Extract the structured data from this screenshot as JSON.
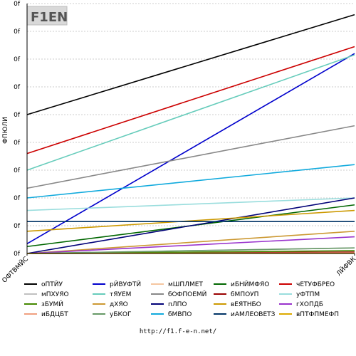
{
  "logo": {
    "text": "F1EN"
  },
  "footer": {
    "url": "http://f1.f-e-n.net/"
  },
  "chart_data": {
    "type": "line",
    "ylabel": "ФПЮЛИ",
    "xlabel": "",
    "categories": [
      "ОФТВМЙС",
      "ЛЙФВК"
    ],
    "y_tick_labels": [
      "0f",
      "0f",
      "0f",
      "0f",
      "0f",
      "0f",
      "0f",
      "0f",
      "0f",
      "0f"
    ],
    "ylim": [
      0,
      9
    ],
    "grid": true,
    "legend_position": "bottom",
    "series": [
      {
        "name": "оПТЙУ",
        "color": "#000000",
        "values": [
          5.0,
          8.6
        ]
      },
      {
        "name": "рЙВУФТЙ",
        "color": "#0000cc",
        "values": [
          0.35,
          7.2
        ]
      },
      {
        "name": "мШПЛМЕТ",
        "color": "#f5c6a0",
        "values": [
          0.0,
          0.03
        ]
      },
      {
        "name": "иБНЙМФЯО",
        "color": "#006600",
        "values": [
          0.25,
          1.75
        ]
      },
      {
        "name": "чЕТУФБРЕО",
        "color": "#cc0000",
        "values": [
          3.6,
          7.45
        ]
      },
      {
        "name": "мПХУЯО",
        "color": "#c0c0c0",
        "values": [
          0.0,
          0.2
        ]
      },
      {
        "name": "тЯУЕМ",
        "color": "#66ccbb",
        "values": [
          3.0,
          7.15
        ]
      },
      {
        "name": "бОФПОЕМЙ",
        "color": "#888888",
        "values": [
          2.35,
          4.6
        ]
      },
      {
        "name": "бМПОУП",
        "color": "#990000",
        "values": [
          0.0,
          0.05
        ]
      },
      {
        "name": "уФТПМ",
        "color": "#99dddd",
        "values": [
          1.55,
          2.0
        ]
      },
      {
        "name": "зБУМЙ",
        "color": "#448800",
        "values": [
          0.0,
          0.1
        ]
      },
      {
        "name": "дХЯО",
        "color": "#cc9933",
        "values": [
          0.0,
          0.8
        ]
      },
      {
        "name": "пЛПО",
        "color": "#000077",
        "values": [
          0.0,
          2.0
        ]
      },
      {
        "name": "вЕЯТНБО",
        "color": "#cc9900",
        "values": [
          0.8,
          1.55
        ]
      },
      {
        "name": "гХОПДБ",
        "color": "#9933cc",
        "values": [
          0.0,
          0.6
        ]
      },
      {
        "name": "иБДЦБТ",
        "color": "#f0a080",
        "values": [
          0.0,
          0.02
        ]
      },
      {
        "name": "уБКОГ",
        "color": "#669966",
        "values": [
          0.0,
          0.2
        ]
      },
      {
        "name": "бМВПО",
        "color": "#11aadd",
        "values": [
          2.0,
          3.2
        ]
      },
      {
        "name": "иАМЛЕОВЕТЗ",
        "color": "#003366",
        "values": [
          1.15,
          1.15
        ]
      },
      {
        "name": "вПТФПМЕФП",
        "color": "#ddaa00",
        "values": [
          0.0,
          0.0
        ]
      }
    ]
  }
}
